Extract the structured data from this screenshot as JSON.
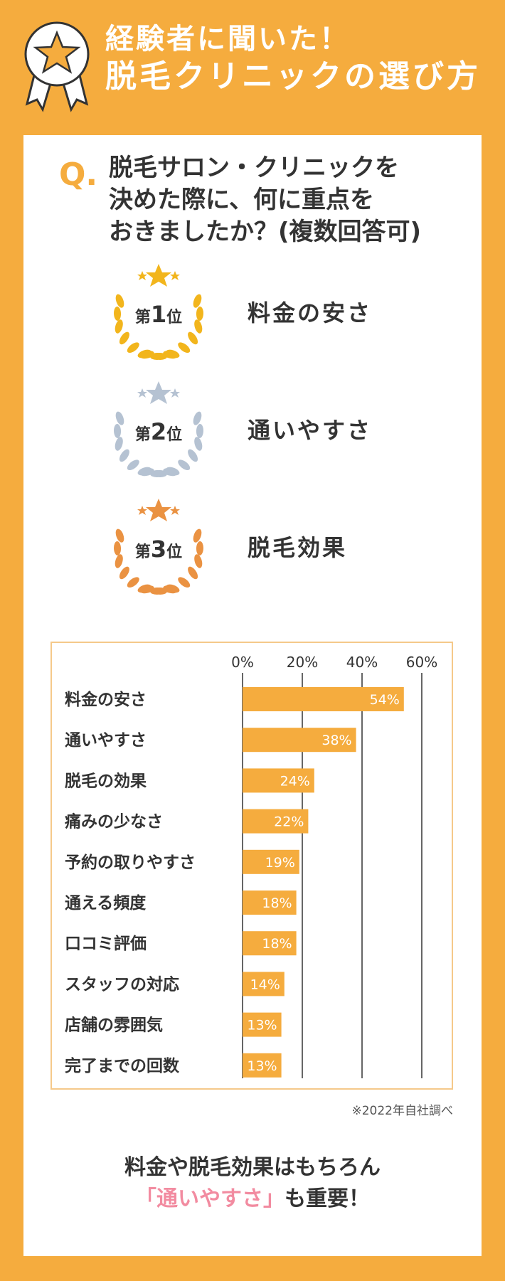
{
  "header": {
    "line1": "経験者に聞いた！",
    "line2": "脱毛クリニックの選び方",
    "medal_icon": "star-medal-icon"
  },
  "question": {
    "mark": "Q.",
    "lines": [
      "脱毛サロン・クリニックを",
      "決めた際に、何に重点を",
      "おきましたか？(複数回答可)"
    ]
  },
  "ranking": [
    {
      "prefix": "第",
      "num": "1",
      "suffix": "位",
      "item": "料金の安さ",
      "color": "#F2B51C"
    },
    {
      "prefix": "第",
      "num": "2",
      "suffix": "位",
      "item": "通いやすさ",
      "color": "#B5C2D2"
    },
    {
      "prefix": "第",
      "num": "3",
      "suffix": "位",
      "item": "脱毛効果",
      "color": "#EA9242"
    }
  ],
  "chart_data": {
    "type": "bar",
    "orientation": "horizontal",
    "categories": [
      "料金の安さ",
      "通いやすさ",
      "脱毛の効果",
      "痛みの少なさ",
      "予約の取りやすさ",
      "通える頻度",
      "口コミ評価",
      "スタッフの対応",
      "店舗の雰囲気",
      "完了までの回数"
    ],
    "values": [
      54,
      38,
      24,
      22,
      19,
      18,
      18,
      14,
      13,
      13
    ],
    "value_labels": [
      "54%",
      "38%",
      "24%",
      "22%",
      "19%",
      "18%",
      "18%",
      "14%",
      "13%",
      "13%"
    ],
    "xticks": [
      "0%",
      "20%",
      "40%",
      "60%"
    ],
    "xlim": [
      0,
      60
    ],
    "bar_color": "#F5AC3E",
    "grid": true
  },
  "note": "※2022年自社調べ",
  "conclusion": {
    "line1": "料金や脱毛効果はもちろん",
    "highlight": "「通いやすさ」",
    "line2_rest": "も重要！",
    "highlight_color": "#F28BA0"
  },
  "colors": {
    "background": "#F5AC3E",
    "card": "#FFFFFF",
    "accent": "#F5AC3E"
  }
}
